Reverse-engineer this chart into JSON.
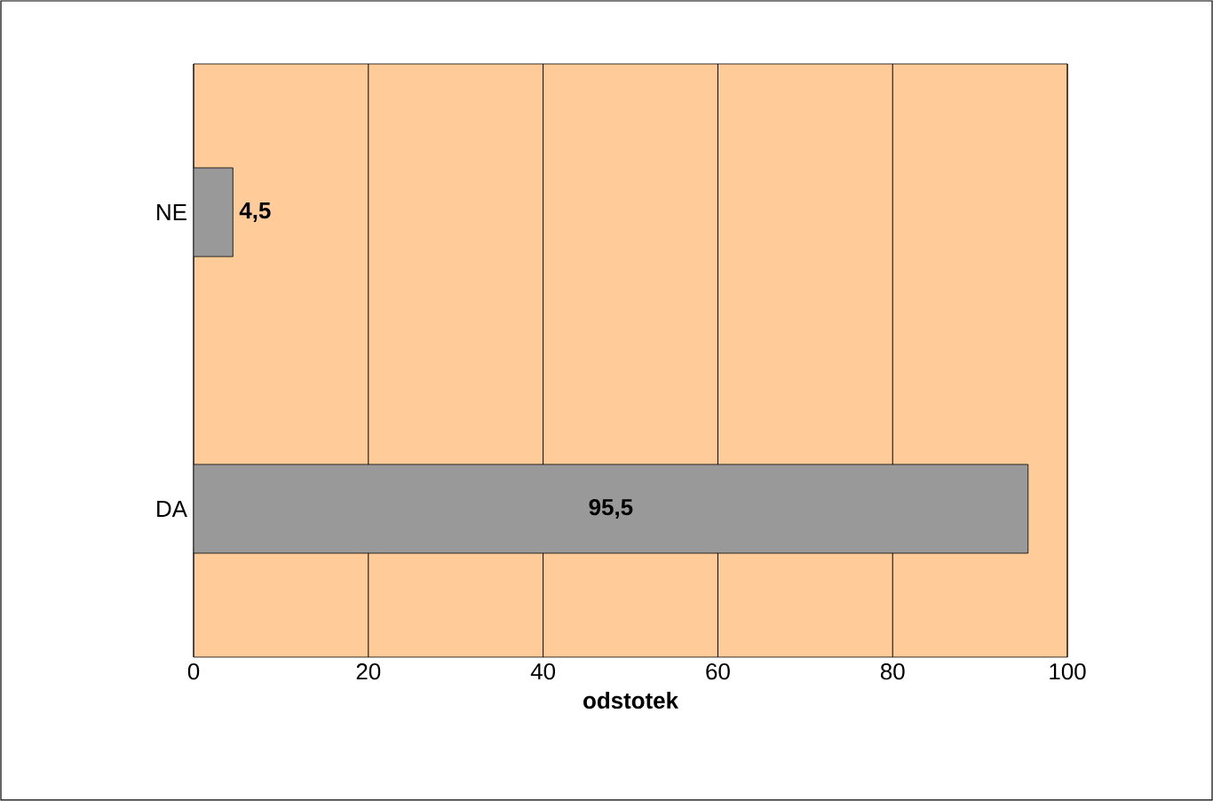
{
  "chart_data": {
    "type": "bar",
    "orientation": "horizontal",
    "categories": [
      "NE",
      "DA"
    ],
    "values": [
      4.5,
      95.5
    ],
    "value_labels": [
      "4,5",
      "95,5"
    ],
    "color": "#999999",
    "xlabel": "odstotek",
    "xlim": [
      0,
      100
    ],
    "xticks": [
      0,
      20,
      40,
      60,
      80,
      100
    ],
    "grid": "x"
  }
}
